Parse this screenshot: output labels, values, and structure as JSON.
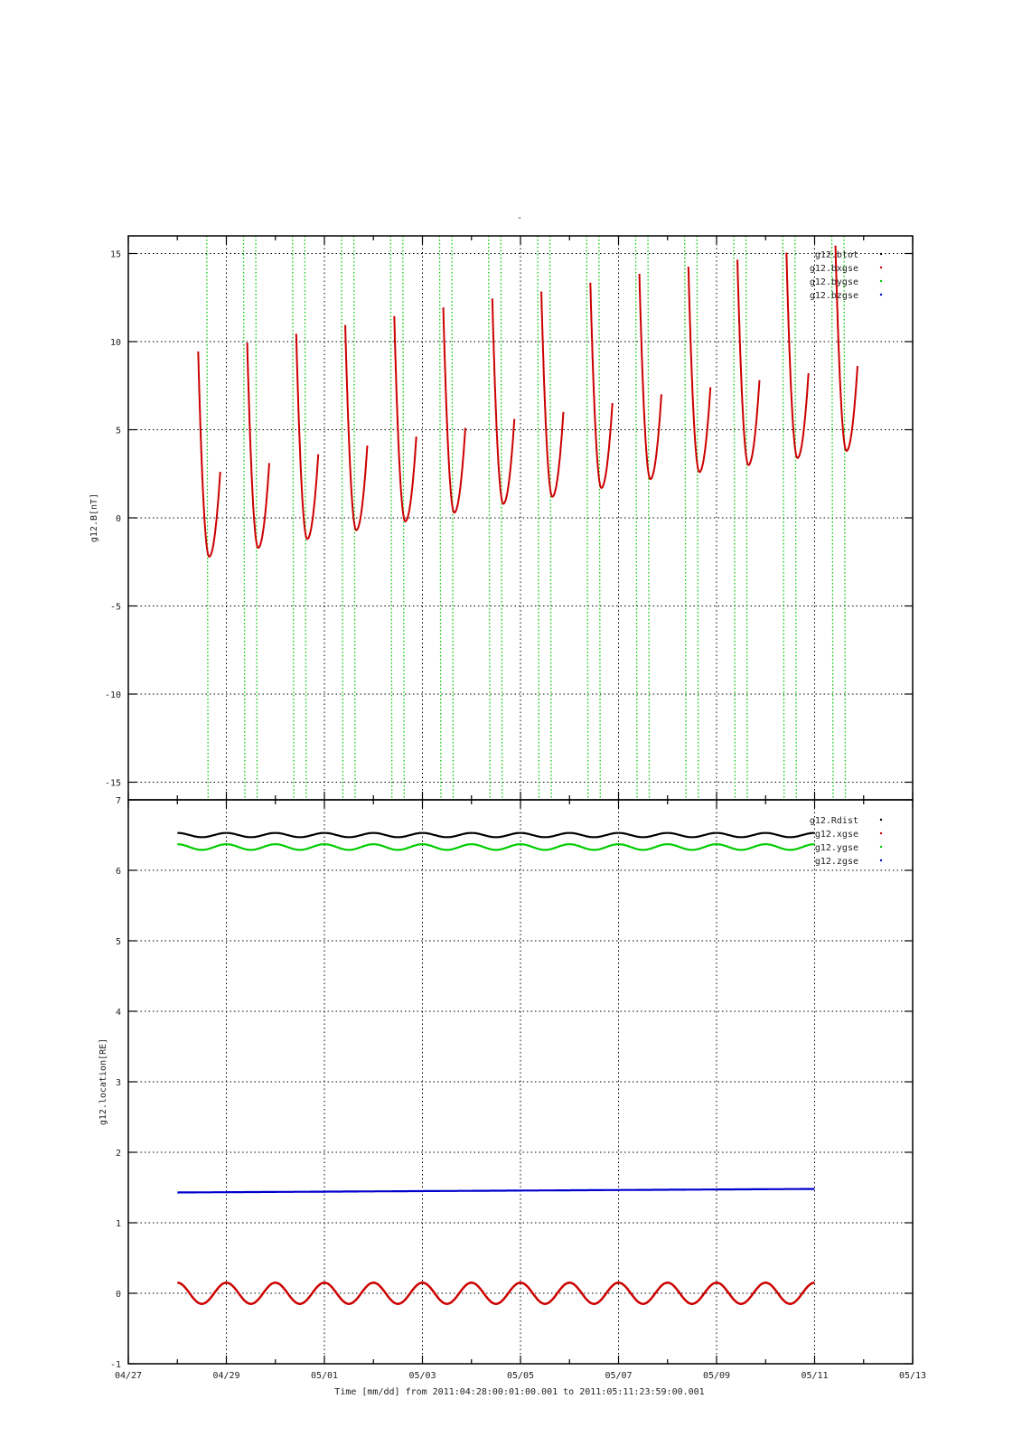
{
  "title": "-",
  "xlabel": "Time [mm/dd]  from 2011:04:28:00:01:00.001  to  2011:05:11:23:59:00.001",
  "x_ticks": [
    "04/27",
    "04/29",
    "05/01",
    "05/03",
    "05/05",
    "05/07",
    "05/09",
    "05/11",
    "05/13"
  ],
  "chart_data": [
    {
      "type": "scatter",
      "ylabel": "g12.B[nT]",
      "ylim": [
        -16,
        16
      ],
      "y_ticks": [
        "-15",
        "-10",
        "-5",
        "0",
        "5",
        "10",
        "15"
      ],
      "xlim_days_from_0427": [
        0,
        16
      ],
      "grid": true,
      "legend_position": "top-right",
      "series": [
        {
          "name": "g12.btot",
          "color": "#000000",
          "values": []
        },
        {
          "name": "g12.bxgse",
          "color": "#cc0000",
          "style": "periodic dips",
          "period_days": 1.0,
          "first_min_day": 1.65,
          "minima": [
            -2.2,
            -1.7,
            -1.2,
            -0.7,
            -0.2,
            0.3,
            0.8,
            1.2,
            1.7,
            2.2,
            2.6,
            3.0,
            3.4,
            3.8
          ],
          "above_range": true
        },
        {
          "name": "g12.bygse",
          "color": "#00cc00",
          "style": "near-vertical crossings",
          "period_days": 1.0,
          "crossing_days": [
            1.6,
            2.35,
            2.6,
            3.35,
            3.6,
            4.35,
            4.6,
            5.35,
            5.6,
            6.35,
            6.6,
            7.35,
            7.6,
            8.35,
            8.6,
            9.35,
            9.6,
            10.35,
            10.6,
            11.35,
            11.6,
            12.35,
            12.6,
            13.35,
            13.6,
            14.35,
            14.6
          ]
        },
        {
          "name": "g12.bzgse",
          "color": "#0000cc",
          "values": []
        }
      ]
    },
    {
      "type": "line",
      "ylabel": "g12.location[RE]",
      "ylim": [
        -1,
        7
      ],
      "y_ticks": [
        "-1",
        "0",
        "1",
        "2",
        "3",
        "4",
        "5",
        "6",
        "7"
      ],
      "xlim_days_from_0427": [
        0,
        16
      ],
      "grid": true,
      "legend_position": "top-right",
      "series": [
        {
          "name": "g12.Rdist",
          "color": "#000000",
          "mean": 6.5,
          "amplitude": 0.03,
          "period_days": 1.0
        },
        {
          "name": "g12.xgse",
          "color": "#cc0000",
          "mean": 0.0,
          "amplitude": 0.15,
          "period_days": 1.0
        },
        {
          "name": "g12.ygse",
          "color": "#00cc00",
          "mean": 6.33,
          "amplitude": 0.04,
          "period_days": 1.0
        },
        {
          "name": "g12.zgse",
          "color": "#0000cc",
          "start": 1.43,
          "end": 1.48
        }
      ],
      "x_range_days": [
        1.0,
        14.0
      ]
    }
  ]
}
